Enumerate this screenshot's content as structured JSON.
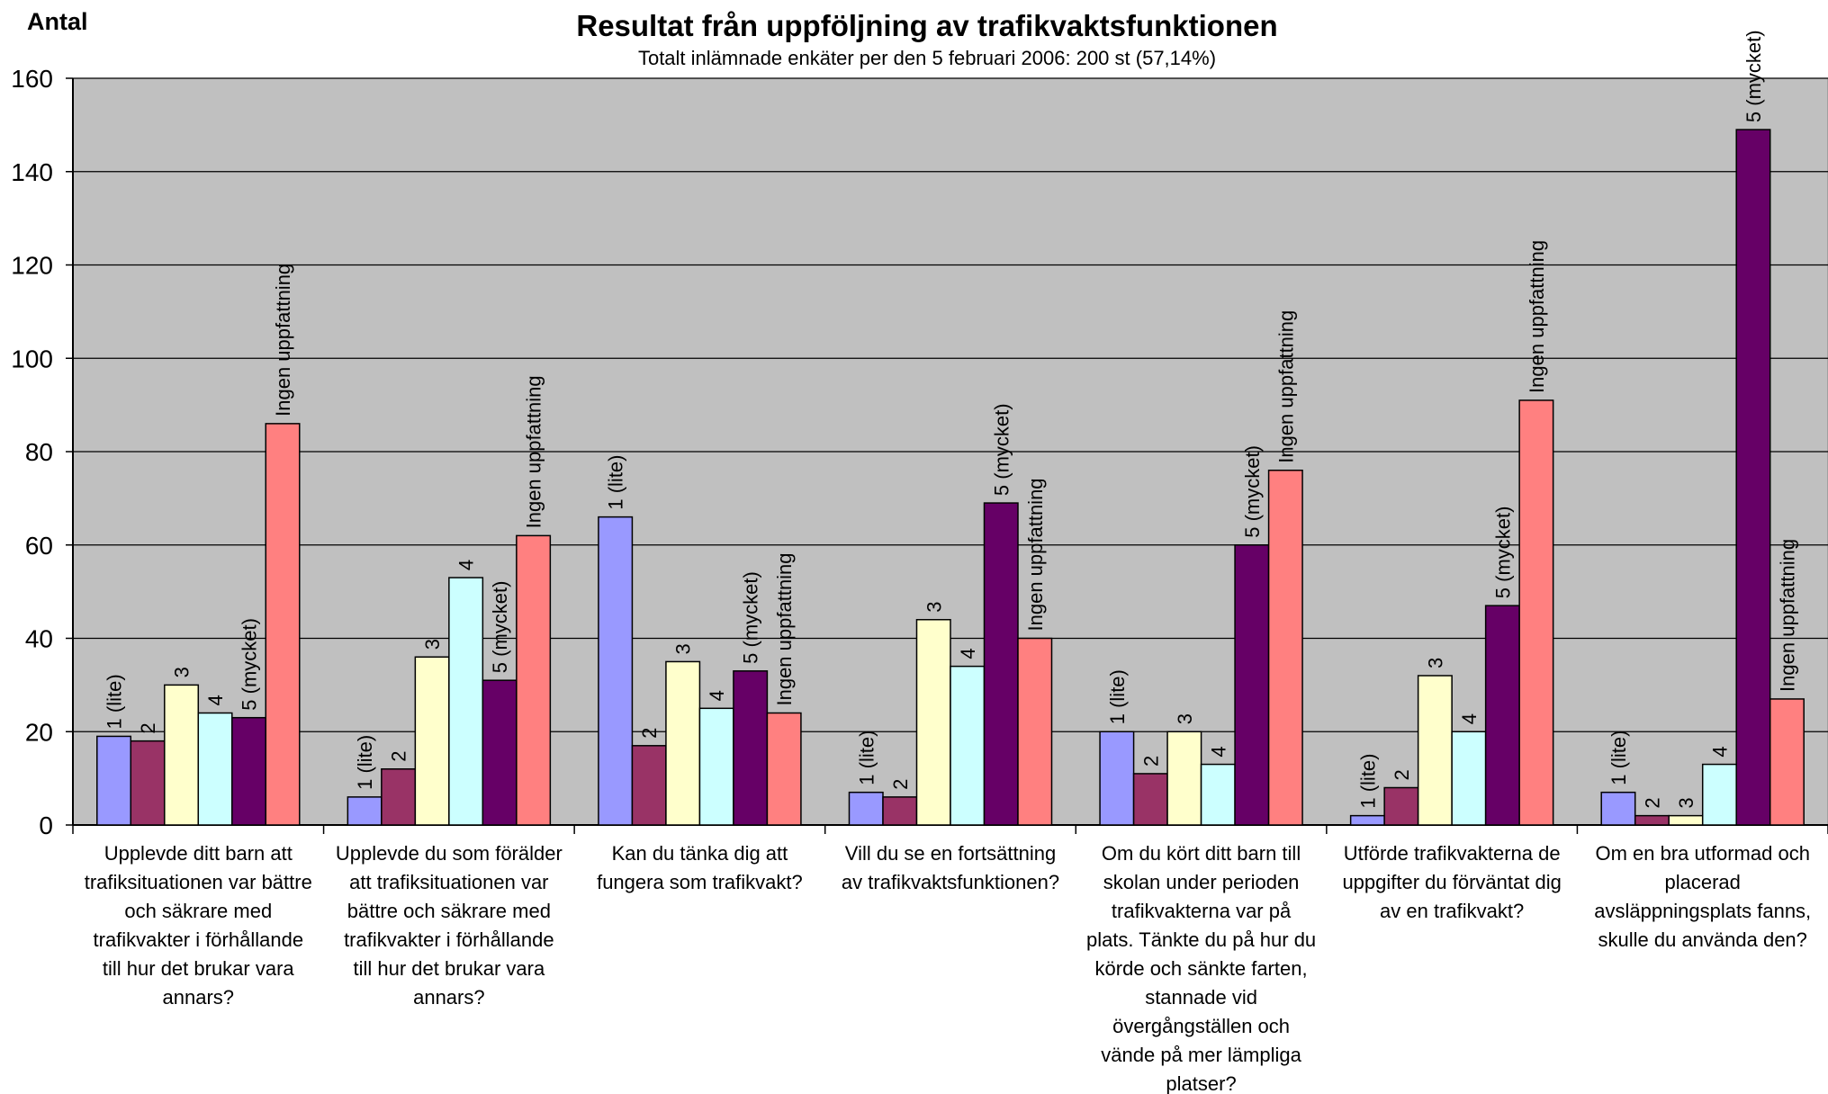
{
  "chart_data": {
    "type": "bar",
    "title": "Resultat från uppföljning av trafikvaktsfunktionen",
    "subtitle": "Totalt inlämnade enkäter per den 5 februari 2006: 200 st  (57,14%)",
    "ylabel": "Antal",
    "xlabel": "",
    "ylim": [
      0,
      160
    ],
    "yticks": [
      0,
      20,
      40,
      60,
      80,
      100,
      120,
      140,
      160
    ],
    "grid": true,
    "plot_background": "#C0C0C0",
    "categories": [
      [
        "Upplevde ditt barn att",
        "trafiksituationen var bättre",
        "och säkrare med",
        "trafikvakter i förhållande",
        "till hur det brukar vara",
        "annars?"
      ],
      [
        "Upplevde du som förälder",
        "att trafiksituationen var",
        "bättre och säkrare med",
        "trafikvakter i förhållande",
        "till hur det brukar vara",
        "annars?"
      ],
      [
        "Kan du tänka dig att",
        "fungera som trafikvakt?"
      ],
      [
        "Vill du se en fortsättning",
        "av trafikvaktsfunktionen?"
      ],
      [
        "Om du kört ditt barn till",
        "skolan under perioden",
        "trafikvakterna var på",
        "plats. Tänkte du på hur du",
        "körde och sänkte farten,",
        "stannade vid",
        "övergångställen och",
        "vände på mer lämpliga",
        "platser?"
      ],
      [
        "Utförde trafikvakterna de",
        "uppgifter du förväntat dig",
        "av en trafikvakt?"
      ],
      [
        "Om en bra utformad och",
        "placerad",
        "avsläppningsplats fanns,",
        "skulle du använda den?"
      ]
    ],
    "series": [
      {
        "name": "1 (lite)",
        "color": "#9999FF",
        "values": [
          19,
          6,
          66,
          7,
          20,
          2,
          7
        ]
      },
      {
        "name": "2",
        "color": "#993366",
        "values": [
          18,
          12,
          17,
          6,
          11,
          8,
          2
        ]
      },
      {
        "name": "3",
        "color": "#FFFFCC",
        "values": [
          30,
          36,
          35,
          44,
          20,
          32,
          2
        ]
      },
      {
        "name": "4",
        "color": "#CCFFFF",
        "values": [
          24,
          53,
          25,
          34,
          13,
          20,
          13
        ]
      },
      {
        "name": "5 (mycket)",
        "color": "#660066",
        "values": [
          23,
          31,
          33,
          69,
          60,
          47,
          149
        ]
      },
      {
        "name": "Ingen uppfattning",
        "color": "#FF8080",
        "values": [
          86,
          62,
          24,
          40,
          76,
          91,
          27
        ]
      }
    ],
    "data_labels": "series_name_rotated"
  }
}
